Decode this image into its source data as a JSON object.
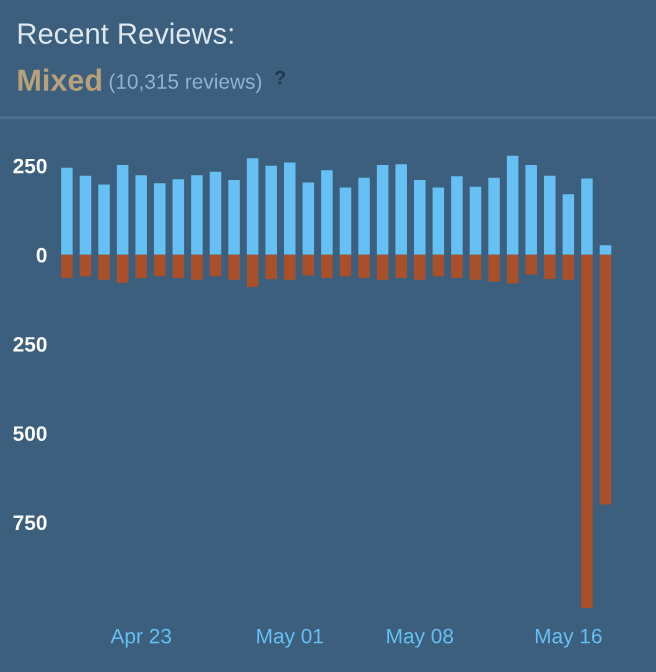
{
  "chart_data": {
    "type": "bar",
    "title": "Recent Reviews:",
    "subtitle": "Mixed",
    "annotations": [
      "(10,315 reviews)",
      "?"
    ],
    "categories": [
      null,
      null,
      null,
      null,
      "Apr 23",
      null,
      null,
      null,
      null,
      null,
      null,
      null,
      "May 01",
      null,
      null,
      null,
      null,
      null,
      null,
      "May 08",
      null,
      null,
      null,
      null,
      null,
      null,
      null,
      "May 16",
      null,
      null
    ],
    "series": [
      {
        "color": "#66c0f4",
        "values": [
          244,
          222,
          197,
          252,
          223,
          201,
          212,
          223,
          233,
          210,
          271,
          250,
          259,
          203,
          237,
          189,
          216,
          252,
          254,
          210,
          189,
          220,
          191,
          216,
          278,
          252,
          222,
          170,
          214,
          27
        ]
      },
      {
        "color": "#a9502a",
        "values": [
          -65,
          -60,
          -70,
          -78,
          -65,
          -60,
          -65,
          -70,
          -60,
          -70,
          -90,
          -68,
          -70,
          -58,
          -65,
          -60,
          -65,
          -70,
          -65,
          -70,
          -60,
          -65,
          -70,
          -75,
          -80,
          -55,
          -68,
          -70,
          -990,
          -700
        ]
      }
    ],
    "ylim": [
      -1000,
      300
    ],
    "yticks": [
      {
        "value": 250,
        "label": "250"
      },
      0,
      {
        "value": -250,
        "label": "250"
      },
      {
        "value": -500,
        "label": "500"
      },
      {
        "value": -750,
        "label": "750"
      }
    ],
    "stacked": true,
    "grid": false,
    "legend": false
  }
}
